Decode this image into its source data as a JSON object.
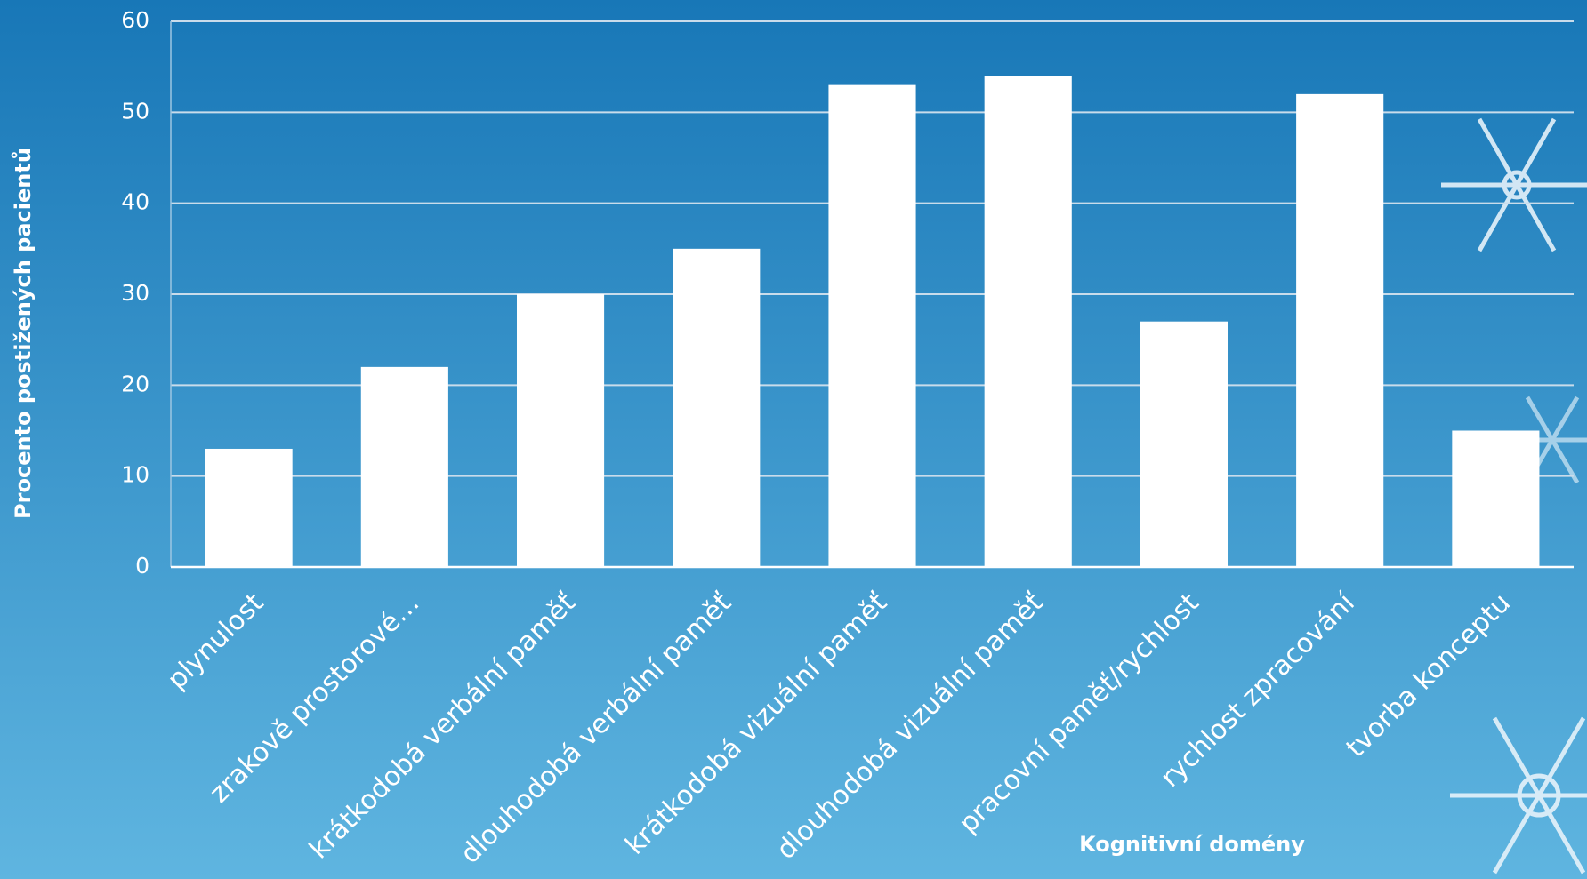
{
  "chart_data": {
    "type": "bar",
    "categories": [
      "plynulost",
      "zrakově prostorové…",
      "krátkodobá verbální paměť",
      "dlouhodobá verbální paměť",
      "krátkodobá vizuální paměť",
      "dlouhodobá vizuální paměť",
      "pracovní paměť/rychlost",
      "rychlost zpracování",
      "tvorba konceptu"
    ],
    "values": [
      13,
      22,
      30,
      35,
      53,
      54,
      27,
      52,
      15
    ],
    "color": "#ffffff",
    "x_label": "Kognitivní domény",
    "y_label": "Procento postižených pacientů",
    "ylim": [
      0,
      60
    ],
    "yticks": [
      0,
      10,
      20,
      30,
      40,
      50,
      60
    ],
    "grid": true
  }
}
